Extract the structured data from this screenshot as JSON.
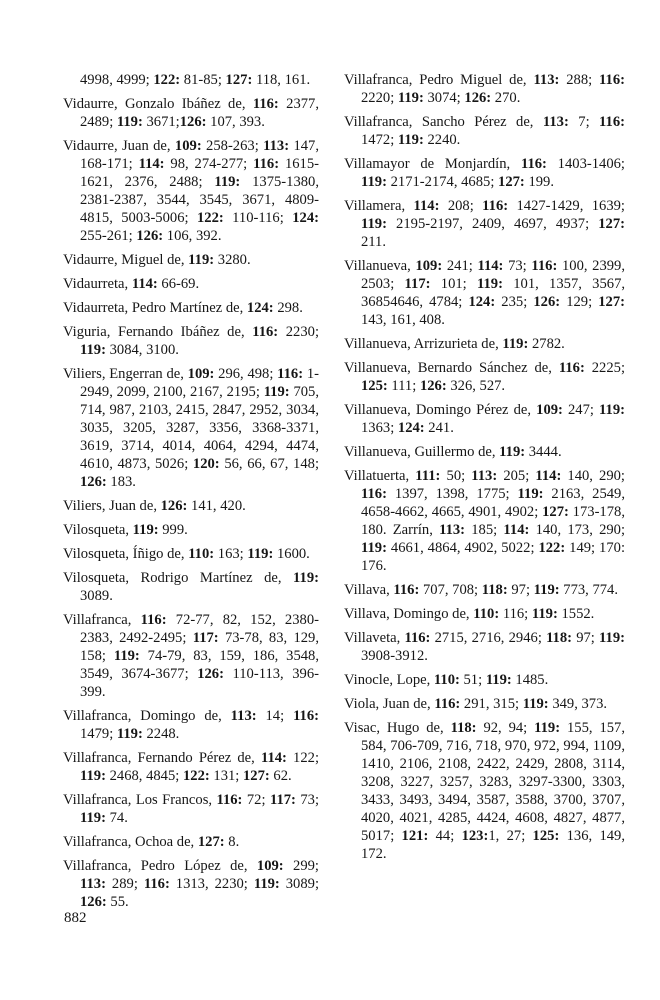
{
  "page_number": "882",
  "left_column": [
    [
      "4998, 4999; ",
      "122:",
      " 81-85; ",
      "127:",
      " 118, 161."
    ],
    [
      "Vidaurre, Gonzalo Ibáñez de, ",
      "116:",
      " 2377, 2489; ",
      "119:",
      " 3671;",
      "126:",
      " 107, 393."
    ],
    [
      "Vidaurre, Juan de, ",
      "109:",
      " 258-263; ",
      "113:",
      " 147, 168-171; ",
      "114:",
      " 98, 274-277; ",
      "116:",
      " 1615-1621, 2376, 2488; ",
      "119:",
      " 1375-1380, 2381-2387, 3544, 3545, 3671, 4809-4815, 5003-5006; ",
      "122:",
      " 110-116; ",
      "124:",
      " 255-261; ",
      "126:",
      " 106, 392."
    ],
    [
      "Vidaurre, Miguel de, ",
      "119:",
      " 3280."
    ],
    [
      "Vidaurreta, ",
      "114:",
      " 66-69."
    ],
    [
      "Vidaurreta, Pedro Martínez de, ",
      "124:",
      " 298."
    ],
    [
      "Viguria, Fernando Ibáñez de, ",
      "116:",
      " 2230; ",
      "119:",
      " 3084, 3100."
    ],
    [
      "Viliers, Engerran de, ",
      "109:",
      " 296, 498; ",
      "116:",
      " 1-2949, 2099, 2100, 2167, 2195; ",
      "119:",
      " 705, 714, 987, 2103, 2415, 2847, 2952, 3034, 3035, 3205, 3287, 3356, 3368-3371, 3619, 3714, 4014, 4064, 4294, 4474, 4610, 4873, 5026; ",
      "120:",
      " 56, 66, 67, 148; ",
      "126:",
      " 183."
    ],
    [
      "Viliers, Juan de, ",
      "126:",
      " 141, 420."
    ],
    [
      "Vilosqueta, ",
      "119:",
      " 999."
    ],
    [
      "Vilosqueta, Íñigo de, ",
      "110:",
      " 163; ",
      "119:",
      " 1600."
    ],
    [
      "Vilosqueta, Rodrigo Martínez de, ",
      "119:",
      " 3089."
    ],
    [
      "Villafranca, ",
      "116:",
      " 72-77, 82, 152, 2380-2383, 2492-2495; ",
      "117:",
      " 73-78, 83, 129, 158; ",
      "119:",
      " 74-79, 83, 159, 186, 3548, 3549, 3674-3677; ",
      "126:",
      " 110-113, 396-399."
    ],
    [
      "Villafranca, Domingo de, ",
      "113:",
      " 14; ",
      "116:",
      " 1479; ",
      "119:",
      " 2248."
    ],
    [
      "Villafranca, Fernando Pérez de, ",
      "114:",
      " 122; ",
      "119:",
      " 2468, 4845; ",
      "122:",
      " 131; ",
      "127:",
      " 62."
    ],
    [
      "Villafranca, Los Francos, ",
      "116:",
      " 72; ",
      "117:",
      " 73; ",
      "119:",
      " 74."
    ],
    [
      "Villafranca, Ochoa de, ",
      "127:",
      " 8."
    ],
    [
      "Villafranca, Pedro López de, ",
      "109:",
      " 299; ",
      "113:",
      " 289; ",
      "116:",
      " 1313, 2230; ",
      "119:",
      " 3089; ",
      "126:",
      " 55."
    ]
  ],
  "right_column": [
    [
      "Villafranca, Pedro Miguel de, ",
      "113:",
      " 288; ",
      "116:",
      " 2220; ",
      "119:",
      " 3074; ",
      "126:",
      " 270."
    ],
    [
      "Villafranca, Sancho Pérez de, ",
      "113:",
      " 7; ",
      "116:",
      " 1472; ",
      "119:",
      " 2240."
    ],
    [
      "Villamayor de Monjardín, ",
      "116:",
      " 1403-1406; ",
      "119:",
      " 2171-2174, 4685; ",
      "127:",
      " 199."
    ],
    [
      "Villamera, ",
      "114:",
      " 208; ",
      "116:",
      " 1427-1429, 1639; ",
      "119:",
      " 2195-2197, 2409, 4697, 4937; ",
      "127:",
      " 211."
    ],
    [
      "Villanueva, ",
      "109:",
      " 241; ",
      "114:",
      " 73; ",
      "116:",
      " 100, 2399, 2503; ",
      "117:",
      " 101; ",
      "119:",
      " 101, 1357, 3567, 36854646, 4784; ",
      "124:",
      " 235; ",
      "126:",
      " 129; ",
      "127:",
      " 143, 161, 408."
    ],
    [
      "Villanueva, Arrizurieta de, ",
      "119:",
      " 2782."
    ],
    [
      "Villanueva, Bernardo Sánchez de, ",
      "116:",
      " 2225; ",
      "125:",
      " 111; ",
      "126:",
      " 326, 527."
    ],
    [
      "Villanueva, Domingo Pérez de, ",
      "109:",
      " 247; ",
      "119:",
      " 1363; ",
      "124:",
      " 241."
    ],
    [
      "Villanueva, Guillermo de, ",
      "119:",
      " 3444."
    ],
    [
      "Villatuerta, ",
      "111:",
      " 50; ",
      "113:",
      " 205; ",
      "114:",
      " 140, 290; ",
      "116:",
      " 1397, 1398, 1775; ",
      "119:",
      " 2163, 2549, 4658-4662, 4665, 4901, 4902; ",
      "127:",
      " 173-178, 180. Zarrín, ",
      "113:",
      " 185; ",
      "114:",
      " 140, 173, 290; ",
      "119:",
      " 4661, 4864, 4902, 5022; ",
      "122:",
      " 149; 170: 176."
    ],
    [
      "Villava, ",
      "116:",
      " 707, 708; ",
      "118:",
      " 97; ",
      "119:",
      " 773, 774."
    ],
    [
      "Villava, Domingo de, ",
      "110:",
      " 116; ",
      "119:",
      " 1552."
    ],
    [
      "Villaveta, ",
      "116:",
      " 2715, 2716, 2946; ",
      "118:",
      " 97; ",
      "119:",
      " 3908-3912."
    ],
    [
      "Vinocle, Lope, ",
      "110:",
      " 51; ",
      "119:",
      " 1485."
    ],
    [
      "Viola, Juan de, ",
      "116:",
      " 291, 315; ",
      "119:",
      " 349, 373."
    ],
    [
      "Visac, Hugo de, ",
      "118:",
      " 92, 94; ",
      "119:",
      " 155, 157, 584, 706-709, 716, 718, 970, 972, 994, 1109, 1410, 2106, 2108, 2422, 2429, 2808, 3114, 3208, 3227, 3257, 3283, 3297-3300, 3303, 3433, 3493, 3494, 3587, 3588, 3700, 3707, 4020, 4021, 4285, 4424, 4608, 4827, 4877, 5017; ",
      "121:",
      " 44; ",
      "123:",
      "1, 27; ",
      "125:",
      " 136, 149, 172."
    ]
  ]
}
